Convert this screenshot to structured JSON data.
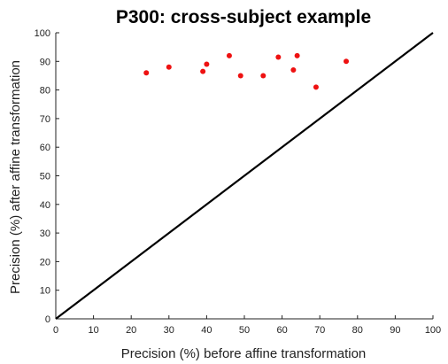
{
  "chart_data": {
    "type": "scatter",
    "title": "P300: cross-subject example",
    "xlabel": "Precision (%) before affine transformation",
    "ylabel": "Precision (%) after affine transformation",
    "xlim": [
      0,
      100
    ],
    "ylim": [
      0,
      100
    ],
    "xticks": [
      "0",
      "10",
      "20",
      "30",
      "40",
      "50",
      "60",
      "70",
      "80",
      "90",
      "100"
    ],
    "yticks": [
      "0",
      "10",
      "20",
      "30",
      "40",
      "50",
      "60",
      "70",
      "80",
      "90",
      "100"
    ],
    "grid": false,
    "point_color": "#ee1111",
    "line_color": "#000000",
    "reference_line": {
      "x": [
        0,
        100
      ],
      "y": [
        0,
        100
      ]
    },
    "points": [
      {
        "x": 24,
        "y": 86
      },
      {
        "x": 30,
        "y": 88
      },
      {
        "x": 39,
        "y": 86.5
      },
      {
        "x": 40,
        "y": 89
      },
      {
        "x": 46,
        "y": 92
      },
      {
        "x": 49,
        "y": 85
      },
      {
        "x": 55,
        "y": 85
      },
      {
        "x": 59,
        "y": 91.5
      },
      {
        "x": 63,
        "y": 87
      },
      {
        "x": 64,
        "y": 92
      },
      {
        "x": 69,
        "y": 81
      },
      {
        "x": 77,
        "y": 90
      }
    ]
  }
}
